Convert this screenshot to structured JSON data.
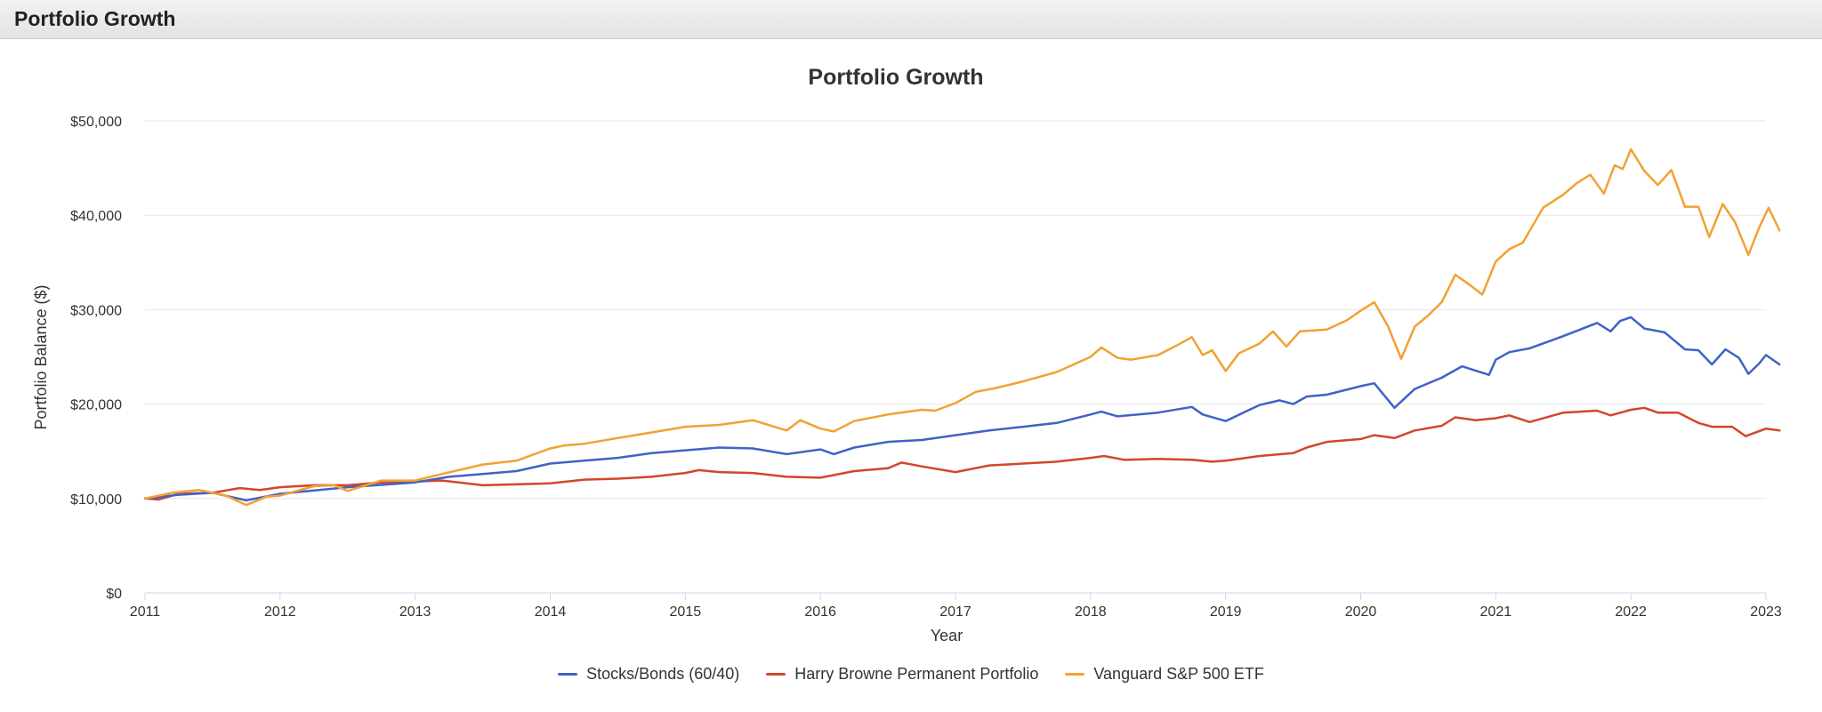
{
  "panel": {
    "title": "Portfolio Growth"
  },
  "chart_data": {
    "type": "line",
    "title": "Portfolio Growth",
    "xlabel": "Year",
    "ylabel": "Portfolio Balance ($)",
    "xlim": [
      2011,
      2023
    ],
    "ylim": [
      0,
      50000
    ],
    "x_ticks": [
      2011,
      2012,
      2013,
      2014,
      2015,
      2016,
      2017,
      2018,
      2019,
      2020,
      2021,
      2022,
      2023
    ],
    "x_tick_labels": [
      "2011",
      "2012",
      "2013",
      "2014",
      "2015",
      "2016",
      "2017",
      "2018",
      "2019",
      "2020",
      "2021",
      "2022",
      "2023"
    ],
    "y_ticks": [
      0,
      10000,
      20000,
      30000,
      40000,
      50000
    ],
    "y_tick_labels": [
      "$0",
      "$10,000",
      "$20,000",
      "$30,000",
      "$40,000",
      "$50,000"
    ],
    "grid": true,
    "legend_position": "bottom-center",
    "series": [
      {
        "name": "Stocks/Bonds (60/40)",
        "color": "#4062c7",
        "points": [
          [
            2011.0,
            10000
          ],
          [
            2011.25,
            10400
          ],
          [
            2011.5,
            10600
          ],
          [
            2011.75,
            9800
          ],
          [
            2012.0,
            10500
          ],
          [
            2012.5,
            11200
          ],
          [
            2013.0,
            11700
          ],
          [
            2013.25,
            12300
          ],
          [
            2013.5,
            12600
          ],
          [
            2013.75,
            12900
          ],
          [
            2014.0,
            13700
          ],
          [
            2014.25,
            14000
          ],
          [
            2014.5,
            14300
          ],
          [
            2014.75,
            14800
          ],
          [
            2015.0,
            15100
          ],
          [
            2015.25,
            15400
          ],
          [
            2015.5,
            15300
          ],
          [
            2015.75,
            14700
          ],
          [
            2016.0,
            15200
          ],
          [
            2016.1,
            14700
          ],
          [
            2016.25,
            15400
          ],
          [
            2016.5,
            16000
          ],
          [
            2016.75,
            16200
          ],
          [
            2017.0,
            16700
          ],
          [
            2017.25,
            17200
          ],
          [
            2017.5,
            17600
          ],
          [
            2017.75,
            18000
          ],
          [
            2018.0,
            18900
          ],
          [
            2018.08,
            19200
          ],
          [
            2018.2,
            18700
          ],
          [
            2018.5,
            19100
          ],
          [
            2018.75,
            19700
          ],
          [
            2018.83,
            18900
          ],
          [
            2019.0,
            18200
          ],
          [
            2019.25,
            19900
          ],
          [
            2019.4,
            20400
          ],
          [
            2019.5,
            20000
          ],
          [
            2019.6,
            20800
          ],
          [
            2019.75,
            21000
          ],
          [
            2020.0,
            21900
          ],
          [
            2020.1,
            22200
          ],
          [
            2020.25,
            19600
          ],
          [
            2020.4,
            21600
          ],
          [
            2020.6,
            22800
          ],
          [
            2020.75,
            24000
          ],
          [
            2020.95,
            23100
          ],
          [
            2021.0,
            24700
          ],
          [
            2021.1,
            25500
          ],
          [
            2021.25,
            25900
          ],
          [
            2021.5,
            27200
          ],
          [
            2021.75,
            28600
          ],
          [
            2021.85,
            27700
          ],
          [
            2021.92,
            28800
          ],
          [
            2022.0,
            29200
          ],
          [
            2022.1,
            28000
          ],
          [
            2022.25,
            27600
          ],
          [
            2022.4,
            25800
          ],
          [
            2022.5,
            25700
          ],
          [
            2022.6,
            24200
          ],
          [
            2022.7,
            25800
          ],
          [
            2022.8,
            24900
          ],
          [
            2022.87,
            23200
          ],
          [
            2022.95,
            24300
          ],
          [
            2023.0,
            25200
          ],
          [
            2023.1,
            24200
          ]
        ]
      },
      {
        "name": "Harry Browne Permanent Portfolio",
        "color": "#d3462a",
        "points": [
          [
            2011.0,
            10000
          ],
          [
            2011.1,
            9900
          ],
          [
            2011.25,
            10500
          ],
          [
            2011.5,
            10600
          ],
          [
            2011.7,
            11100
          ],
          [
            2011.85,
            10900
          ],
          [
            2012.0,
            11200
          ],
          [
            2012.25,
            11400
          ],
          [
            2012.5,
            11400
          ],
          [
            2012.75,
            11700
          ],
          [
            2013.0,
            11800
          ],
          [
            2013.2,
            11900
          ],
          [
            2013.5,
            11400
          ],
          [
            2013.75,
            11500
          ],
          [
            2014.0,
            11600
          ],
          [
            2014.25,
            12000
          ],
          [
            2014.5,
            12100
          ],
          [
            2014.75,
            12300
          ],
          [
            2015.0,
            12700
          ],
          [
            2015.1,
            13000
          ],
          [
            2015.25,
            12800
          ],
          [
            2015.5,
            12700
          ],
          [
            2015.75,
            12300
          ],
          [
            2016.0,
            12200
          ],
          [
            2016.25,
            12900
          ],
          [
            2016.5,
            13200
          ],
          [
            2016.6,
            13800
          ],
          [
            2016.75,
            13400
          ],
          [
            2017.0,
            12800
          ],
          [
            2017.25,
            13500
          ],
          [
            2017.5,
            13700
          ],
          [
            2017.75,
            13900
          ],
          [
            2018.0,
            14300
          ],
          [
            2018.1,
            14500
          ],
          [
            2018.25,
            14100
          ],
          [
            2018.5,
            14200
          ],
          [
            2018.75,
            14100
          ],
          [
            2018.9,
            13900
          ],
          [
            2019.0,
            14000
          ],
          [
            2019.25,
            14500
          ],
          [
            2019.5,
            14800
          ],
          [
            2019.6,
            15400
          ],
          [
            2019.75,
            16000
          ],
          [
            2020.0,
            16300
          ],
          [
            2020.1,
            16700
          ],
          [
            2020.25,
            16400
          ],
          [
            2020.4,
            17200
          ],
          [
            2020.6,
            17700
          ],
          [
            2020.7,
            18600
          ],
          [
            2020.85,
            18300
          ],
          [
            2021.0,
            18500
          ],
          [
            2021.1,
            18800
          ],
          [
            2021.25,
            18100
          ],
          [
            2021.5,
            19100
          ],
          [
            2021.75,
            19300
          ],
          [
            2021.85,
            18800
          ],
          [
            2022.0,
            19400
          ],
          [
            2022.1,
            19600
          ],
          [
            2022.2,
            19100
          ],
          [
            2022.35,
            19100
          ],
          [
            2022.5,
            18000
          ],
          [
            2022.6,
            17600
          ],
          [
            2022.75,
            17600
          ],
          [
            2022.85,
            16600
          ],
          [
            2023.0,
            17400
          ],
          [
            2023.1,
            17200
          ]
        ]
      },
      {
        "name": "Vanguard S&P 500 ETF",
        "color": "#f2a133",
        "points": [
          [
            2011.0,
            10000
          ],
          [
            2011.2,
            10600
          ],
          [
            2011.4,
            10900
          ],
          [
            2011.6,
            10300
          ],
          [
            2011.75,
            9300
          ],
          [
            2011.9,
            10200
          ],
          [
            2012.0,
            10300
          ],
          [
            2012.25,
            11300
          ],
          [
            2012.4,
            11400
          ],
          [
            2012.5,
            10800
          ],
          [
            2012.75,
            11900
          ],
          [
            2013.0,
            11900
          ],
          [
            2013.2,
            12600
          ],
          [
            2013.5,
            13600
          ],
          [
            2013.75,
            14000
          ],
          [
            2014.0,
            15300
          ],
          [
            2014.1,
            15600
          ],
          [
            2014.25,
            15800
          ],
          [
            2014.5,
            16400
          ],
          [
            2014.75,
            17000
          ],
          [
            2015.0,
            17600
          ],
          [
            2015.25,
            17800
          ],
          [
            2015.5,
            18300
          ],
          [
            2015.75,
            17200
          ],
          [
            2015.85,
            18300
          ],
          [
            2016.0,
            17400
          ],
          [
            2016.1,
            17100
          ],
          [
            2016.25,
            18200
          ],
          [
            2016.5,
            18900
          ],
          [
            2016.75,
            19400
          ],
          [
            2016.85,
            19300
          ],
          [
            2017.0,
            20100
          ],
          [
            2017.15,
            21300
          ],
          [
            2017.3,
            21700
          ],
          [
            2017.5,
            22400
          ],
          [
            2017.75,
            23400
          ],
          [
            2018.0,
            25000
          ],
          [
            2018.08,
            26000
          ],
          [
            2018.2,
            24900
          ],
          [
            2018.3,
            24700
          ],
          [
            2018.5,
            25200
          ],
          [
            2018.65,
            26300
          ],
          [
            2018.75,
            27100
          ],
          [
            2018.83,
            25200
          ],
          [
            2018.9,
            25700
          ],
          [
            2019.0,
            23500
          ],
          [
            2019.1,
            25400
          ],
          [
            2019.25,
            26400
          ],
          [
            2019.35,
            27700
          ],
          [
            2019.45,
            26100
          ],
          [
            2019.55,
            27700
          ],
          [
            2019.75,
            27900
          ],
          [
            2019.9,
            28900
          ],
          [
            2020.0,
            29900
          ],
          [
            2020.1,
            30800
          ],
          [
            2020.2,
            28300
          ],
          [
            2020.3,
            24800
          ],
          [
            2020.4,
            28200
          ],
          [
            2020.5,
            29400
          ],
          [
            2020.6,
            30800
          ],
          [
            2020.7,
            33700
          ],
          [
            2020.8,
            32700
          ],
          [
            2020.9,
            31600
          ],
          [
            2021.0,
            35100
          ],
          [
            2021.1,
            36400
          ],
          [
            2021.2,
            37100
          ],
          [
            2021.35,
            40800
          ],
          [
            2021.5,
            42200
          ],
          [
            2021.6,
            43400
          ],
          [
            2021.7,
            44300
          ],
          [
            2021.8,
            42300
          ],
          [
            2021.88,
            45300
          ],
          [
            2021.94,
            44900
          ],
          [
            2022.0,
            47000
          ],
          [
            2022.1,
            44700
          ],
          [
            2022.2,
            43200
          ],
          [
            2022.3,
            44800
          ],
          [
            2022.4,
            40900
          ],
          [
            2022.5,
            40900
          ],
          [
            2022.58,
            37700
          ],
          [
            2022.68,
            41200
          ],
          [
            2022.77,
            39300
          ],
          [
            2022.87,
            35800
          ],
          [
            2022.95,
            38700
          ],
          [
            2023.02,
            40800
          ],
          [
            2023.1,
            38400
          ]
        ]
      }
    ]
  }
}
